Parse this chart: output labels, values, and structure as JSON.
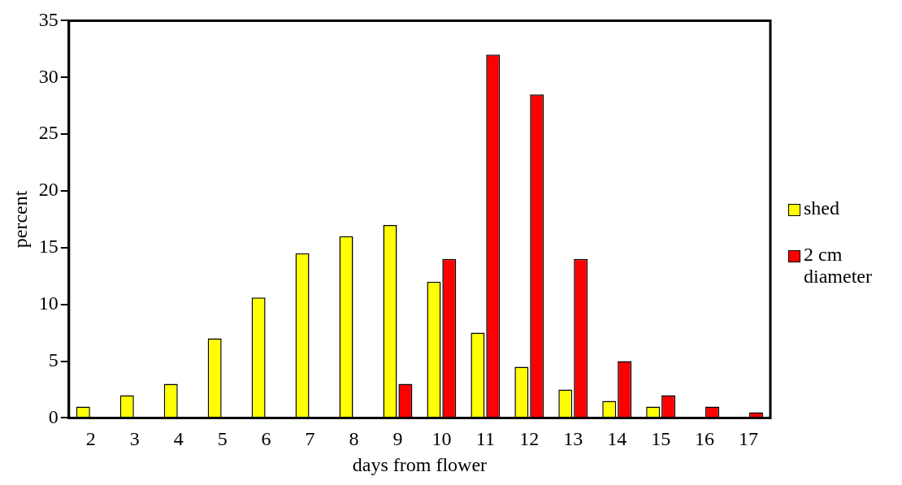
{
  "chart_data": {
    "type": "bar",
    "xlabel": "days from flower",
    "ylabel": "percent",
    "categories": [
      "2",
      "3",
      "4",
      "5",
      "6",
      "7",
      "8",
      "9",
      "10",
      "11",
      "12",
      "13",
      "14",
      "15",
      "16",
      "17"
    ],
    "series": [
      {
        "name": "shed",
        "color": "#ffff00",
        "values": [
          1,
          2,
          3,
          7,
          10.6,
          14.5,
          16,
          17,
          12,
          7.5,
          4.5,
          2.5,
          1.5,
          1,
          null,
          null
        ]
      },
      {
        "name": "2 cm diameter",
        "color": "#ff0000",
        "values": [
          null,
          null,
          null,
          null,
          null,
          null,
          null,
          3,
          14,
          32,
          28.5,
          14,
          5,
          2,
          1,
          0.5
        ]
      }
    ],
    "ylim": [
      0,
      35
    ],
    "yticks": [
      0,
      5,
      10,
      15,
      20,
      25,
      30,
      35
    ],
    "grid": false,
    "legend": "right"
  }
}
